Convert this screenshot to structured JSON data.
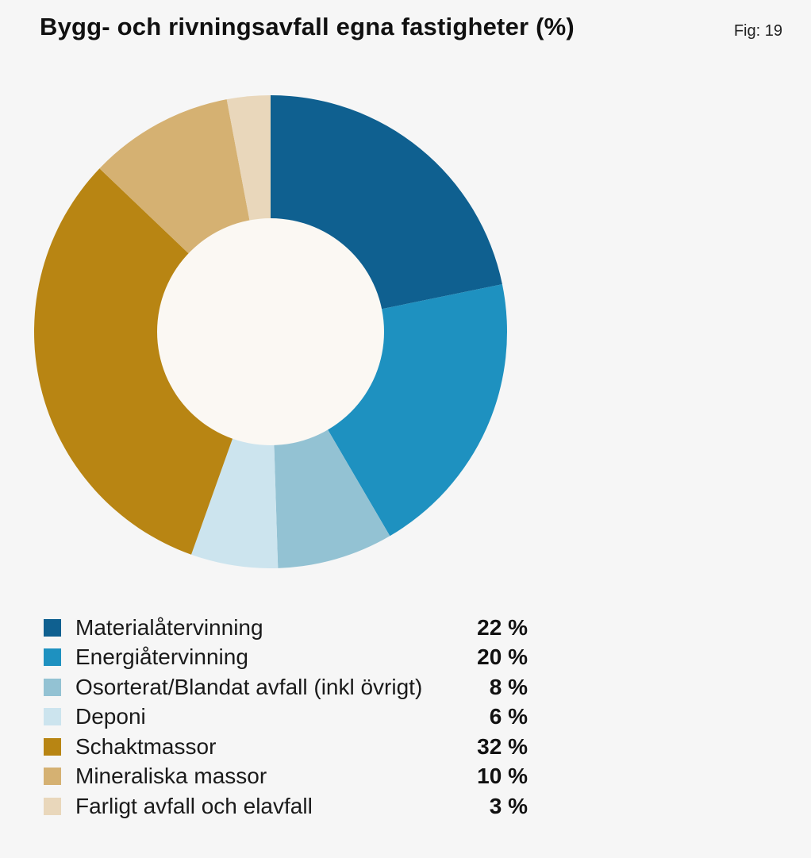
{
  "header": {
    "title": "Bygg- och rivningsavfall egna fastigheter (%)",
    "fig": "Fig: 19"
  },
  "chart_data": {
    "type": "pie",
    "donut": true,
    "title": "Bygg- och rivningsavfall egna fastigheter (%)",
    "legend_position": "bottom",
    "categories": [
      "Materialåtervinning",
      "Energiåtervinning",
      "Osorterat/Blandat avfall (inkl övrigt)",
      "Deponi",
      "Schaktmassor",
      "Mineraliska massor",
      "Farligt avfall och elavfall"
    ],
    "values": [
      22,
      20,
      8,
      6,
      32,
      10,
      3
    ],
    "value_labels": [
      "22 %",
      "20 %",
      "8 %",
      "6 %",
      "32 %",
      "10 %",
      "3 %"
    ],
    "colors": [
      "#0f6090",
      "#1e91c0",
      "#93c2d3",
      "#cce4ee",
      "#b88513",
      "#d5b172",
      "#e9d7bb"
    ],
    "center_color": "#fbf8f3"
  }
}
